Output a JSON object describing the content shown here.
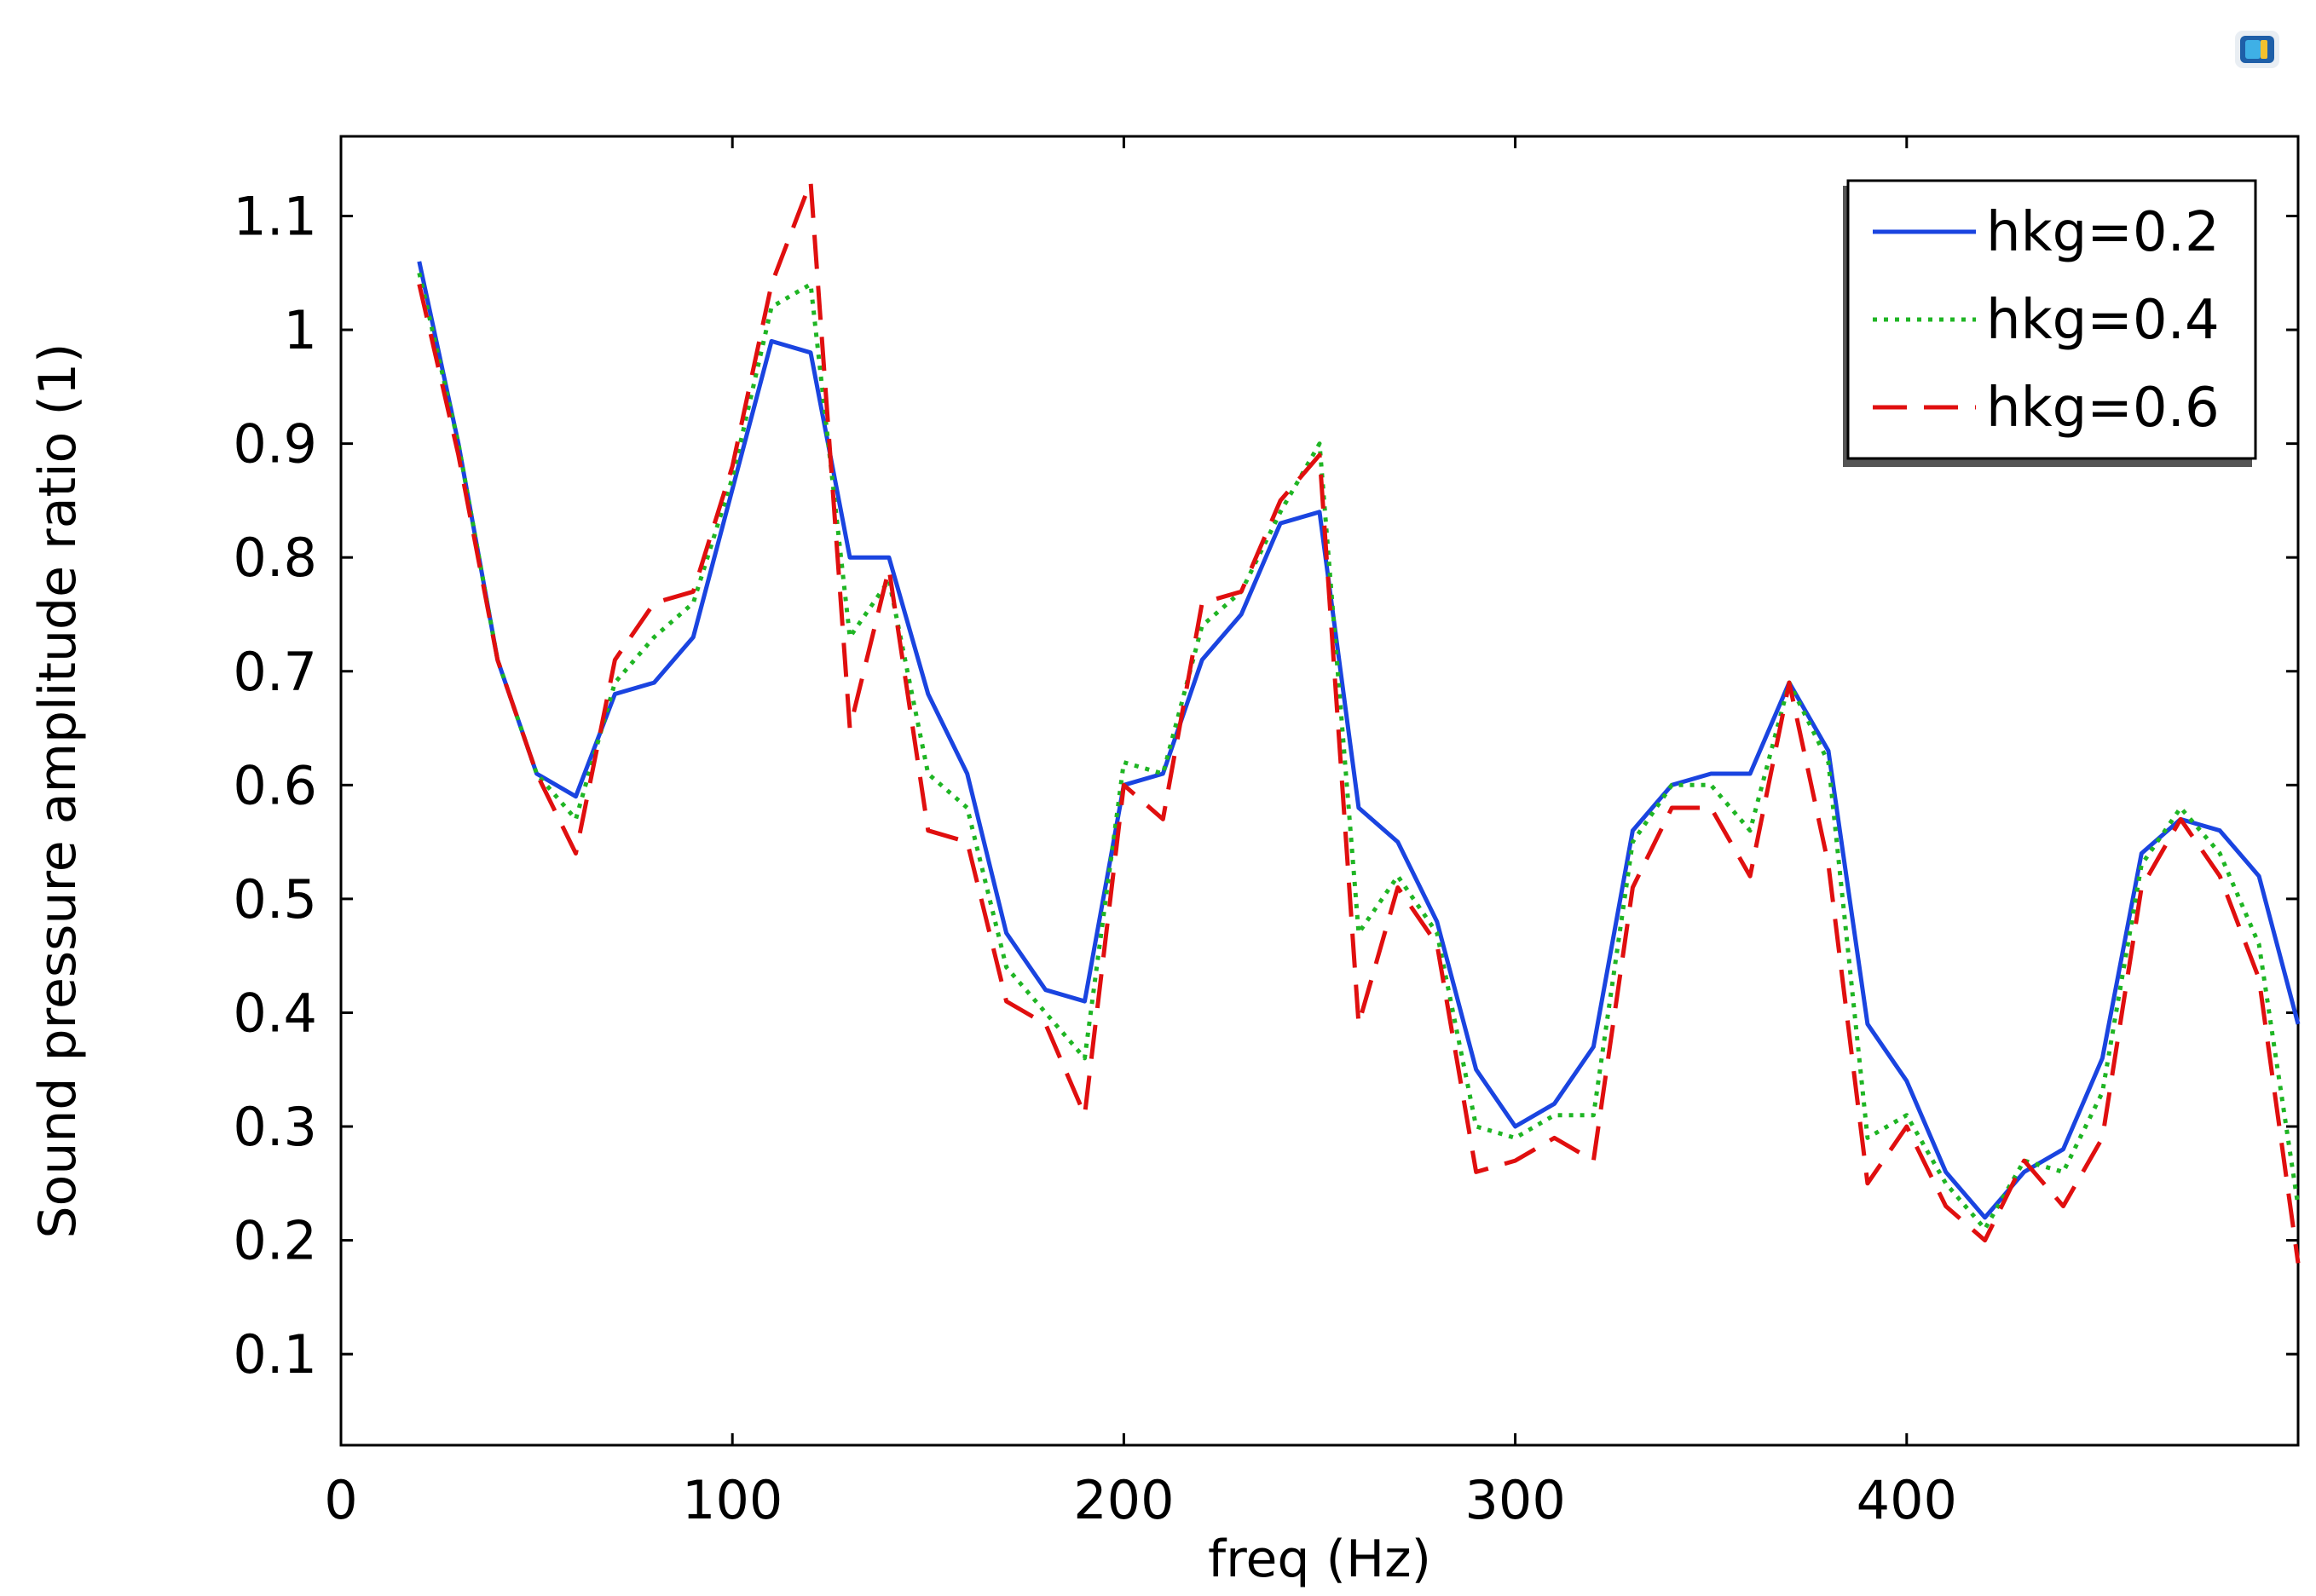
{
  "chart_data": {
    "type": "line",
    "title": "",
    "xlabel": "freq (Hz)",
    "ylabel": "Sound pressure amplitude ratio (1)",
    "xlim": [
      0,
      500
    ],
    "ylim": [
      0.02,
      1.17
    ],
    "xticks": [
      0,
      100,
      200,
      300,
      400
    ],
    "xtick_labels": [
      "0",
      "100",
      "200",
      "300",
      "400"
    ],
    "yticks": [
      0.1,
      0.2,
      0.3,
      0.4,
      0.5,
      0.6,
      0.7,
      0.8,
      0.9,
      1.0,
      1.1
    ],
    "ytick_labels": [
      "0.1",
      "0.2",
      "0.3",
      "0.4",
      "0.5",
      "0.6",
      "0.7",
      "0.8",
      "0.9",
      "1",
      "1.1"
    ],
    "grid": false,
    "legend_position": "top-right",
    "x": [
      20,
      30,
      40,
      50,
      60,
      70,
      80,
      90,
      100,
      110,
      120,
      130,
      140,
      150,
      160,
      170,
      180,
      190,
      200,
      210,
      220,
      230,
      240,
      250,
      260,
      270,
      280,
      290,
      300,
      310,
      320,
      330,
      340,
      350,
      360,
      370,
      380,
      390,
      400,
      410,
      420,
      430,
      440,
      450,
      460,
      470,
      480,
      490,
      500
    ],
    "series": [
      {
        "name": "hkg=0.2",
        "color": "#1a44e0",
        "dash": "solid",
        "values": [
          1.06,
          0.9,
          0.71,
          0.61,
          0.59,
          0.68,
          0.69,
          0.73,
          0.86,
          0.99,
          0.98,
          0.8,
          0.8,
          0.68,
          0.61,
          0.47,
          0.42,
          0.41,
          0.6,
          0.61,
          0.71,
          0.75,
          0.83,
          0.84,
          0.58,
          0.55,
          0.48,
          0.35,
          0.3,
          0.32,
          0.37,
          0.56,
          0.6,
          0.61,
          0.61,
          0.69,
          0.63,
          0.39,
          0.34,
          0.26,
          0.22,
          0.26,
          0.28,
          0.36,
          0.54,
          0.57,
          0.56,
          0.52,
          0.39
        ]
      },
      {
        "name": "hkg=0.4",
        "color": "#1fb524",
        "dash": "dotted",
        "values": [
          1.05,
          0.9,
          0.71,
          0.61,
          0.57,
          0.69,
          0.73,
          0.76,
          0.87,
          1.02,
          1.04,
          0.73,
          0.78,
          0.61,
          0.58,
          0.44,
          0.4,
          0.36,
          0.62,
          0.61,
          0.74,
          0.77,
          0.84,
          0.9,
          0.47,
          0.52,
          0.47,
          0.3,
          0.29,
          0.31,
          0.31,
          0.55,
          0.6,
          0.6,
          0.56,
          0.69,
          0.62,
          0.29,
          0.31,
          0.25,
          0.21,
          0.27,
          0.26,
          0.33,
          0.53,
          0.58,
          0.54,
          0.46,
          0.23
        ]
      },
      {
        "name": "hkg=0.6",
        "color": "#e00f0f",
        "dash": "dashed",
        "values": [
          1.04,
          0.89,
          0.71,
          0.61,
          0.54,
          0.71,
          0.76,
          0.77,
          0.88,
          1.04,
          1.13,
          0.65,
          0.79,
          0.56,
          0.55,
          0.41,
          0.39,
          0.31,
          0.6,
          0.57,
          0.76,
          0.77,
          0.85,
          0.89,
          0.39,
          0.51,
          0.46,
          0.26,
          0.27,
          0.29,
          0.27,
          0.51,
          0.58,
          0.58,
          0.52,
          0.69,
          0.53,
          0.25,
          0.3,
          0.23,
          0.2,
          0.27,
          0.23,
          0.29,
          0.51,
          0.57,
          0.52,
          0.43,
          0.18
        ]
      }
    ]
  },
  "logo": {
    "icon": "app-logo-icon",
    "colors": [
      "#1e5fa8",
      "#3fb0e6",
      "#f2c12e"
    ]
  }
}
